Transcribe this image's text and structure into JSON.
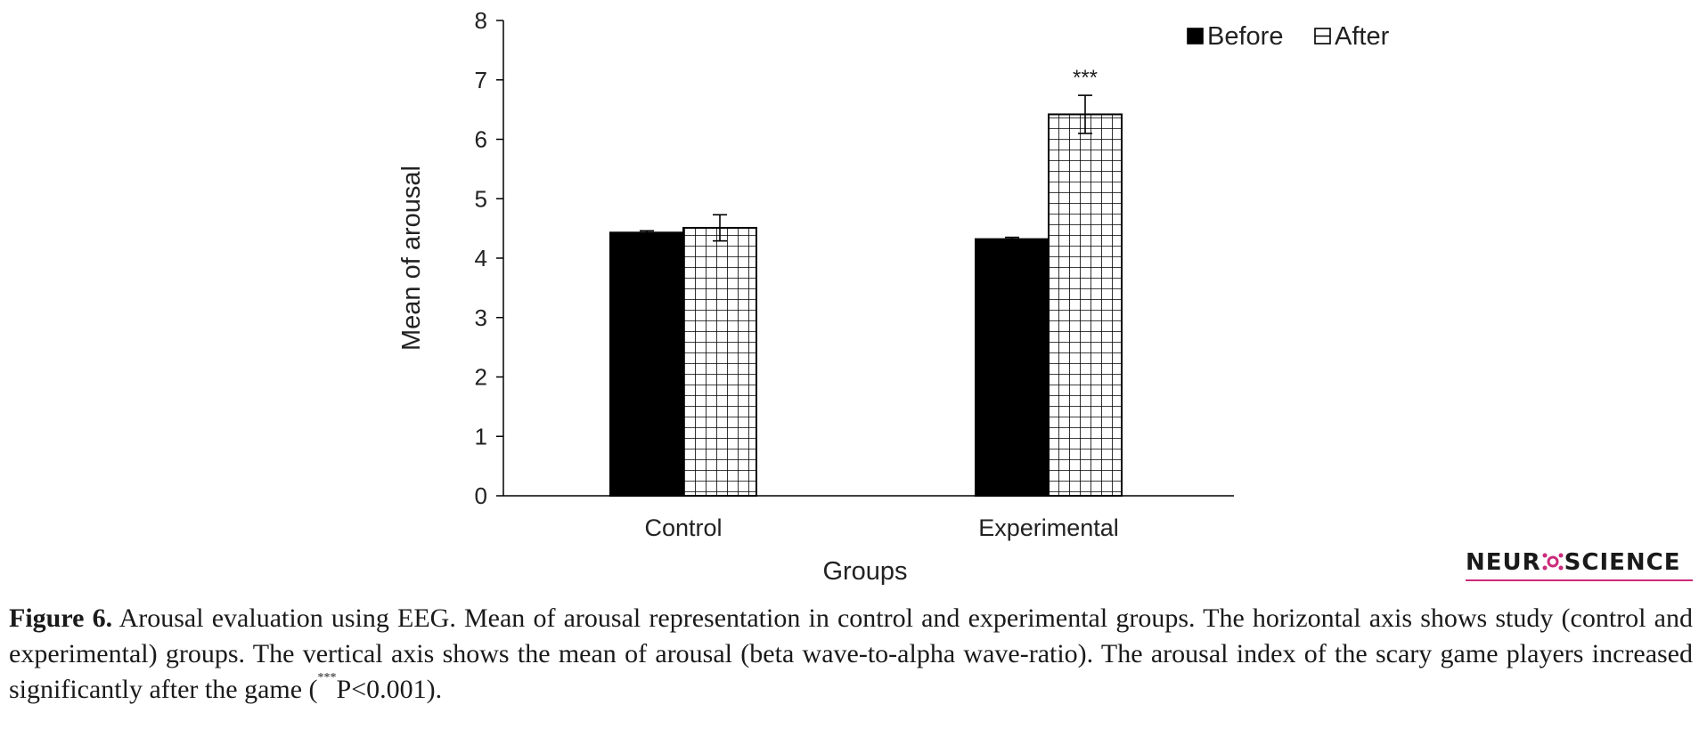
{
  "chart_data": {
    "type": "bar",
    "categories": [
      "Control",
      "Experimental"
    ],
    "series": [
      {
        "name": "Before",
        "values": [
          4.43,
          4.32
        ],
        "errors": [
          0.03,
          0.03
        ],
        "fill": "solid"
      },
      {
        "name": "After",
        "values": [
          4.51,
          6.42
        ],
        "errors": [
          0.22,
          0.32
        ],
        "fill": "grid"
      }
    ],
    "xlabel": "Groups",
    "ylabel": "Mean of arousal",
    "ylim": [
      0,
      8
    ],
    "yticks": [
      "0",
      "1",
      "2",
      "3",
      "4",
      "5",
      "6",
      "7",
      "8"
    ],
    "annotations": [
      {
        "category": "Experimental",
        "series": "After",
        "text": "***"
      }
    ],
    "legend_position": "top-right",
    "grid": false,
    "colors": {
      "solid": "#000000",
      "hatch": "#000000",
      "background": "#ffffff"
    }
  },
  "caption": {
    "label": "Figure 6.",
    "text_part1": " Arousal evaluation using EEG. Mean of arousal representation in control and experimental groups. The horizontal axis shows study (control and experimental) groups. The vertical axis shows the mean of arousal (beta wave-to-alpha wave-ratio). The arousal index of the scary game players increased significantly after the game (",
    "sup": "***",
    "text_part2": "P<0.001)."
  },
  "logo": {
    "left": "NEUR",
    "right": "SCIENCE",
    "accent_color": "#cc2a7a",
    "icon": "neuron-icon"
  }
}
